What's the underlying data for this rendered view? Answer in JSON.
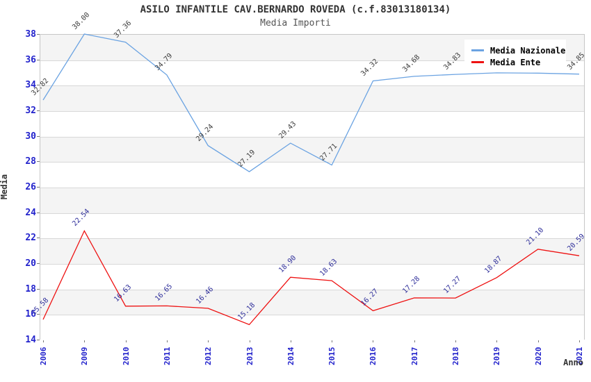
{
  "title": "ASILO INFANTILE CAV.BERNARDO ROVEDA (c.f.83013180134)",
  "subtitle": "Media Importi",
  "chart_data": {
    "type": "line",
    "title": "ASILO INFANTILE CAV.BERNARDO ROVEDA (c.f.83013180134)",
    "subtitle": "Media Importi",
    "categories": [
      "2006",
      "2009",
      "2010",
      "2011",
      "2012",
      "2013",
      "2014",
      "2015",
      "2016",
      "2017",
      "2018",
      "2019",
      "2020",
      "2021"
    ],
    "series": [
      {
        "name": "Media Nazionale",
        "color": "#6ba3e2",
        "label_color": "#3d3d3d",
        "values": [
          32.82,
          38.0,
          37.36,
          34.79,
          29.24,
          27.19,
          29.43,
          27.71,
          34.32,
          34.68,
          34.83,
          34.95,
          34.93,
          34.85
        ],
        "labels": [
          "32.82",
          "38.00",
          "37.36",
          "34.79",
          "29.24",
          "27.19",
          "29.43",
          "27.71",
          "34.32",
          "34.68",
          "34.83",
          "",
          "",
          "34.85"
        ]
      },
      {
        "name": "Media Ente",
        "color": "#ee1111",
        "label_color": "#30309b",
        "values": [
          15.58,
          22.54,
          16.63,
          16.65,
          16.46,
          15.18,
          18.9,
          18.63,
          16.27,
          17.28,
          17.27,
          18.87,
          21.1,
          20.59
        ],
        "labels": [
          "15.58",
          "22.54",
          "16.63",
          "16.65",
          "16.46",
          "15.18",
          "18.90",
          "18.63",
          "16.27",
          "17.28",
          "17.27",
          "18.87",
          "21.10",
          "20.59"
        ]
      }
    ],
    "xlabel": "Anno",
    "ylabel": "Media",
    "ylim": [
      14,
      38
    ],
    "ytick_step": 2,
    "grid": true,
    "legend_position": "top-right",
    "band_colors": [
      "#f4f4f4",
      "#ffffff"
    ],
    "tick_label_color": "#2222cc"
  }
}
